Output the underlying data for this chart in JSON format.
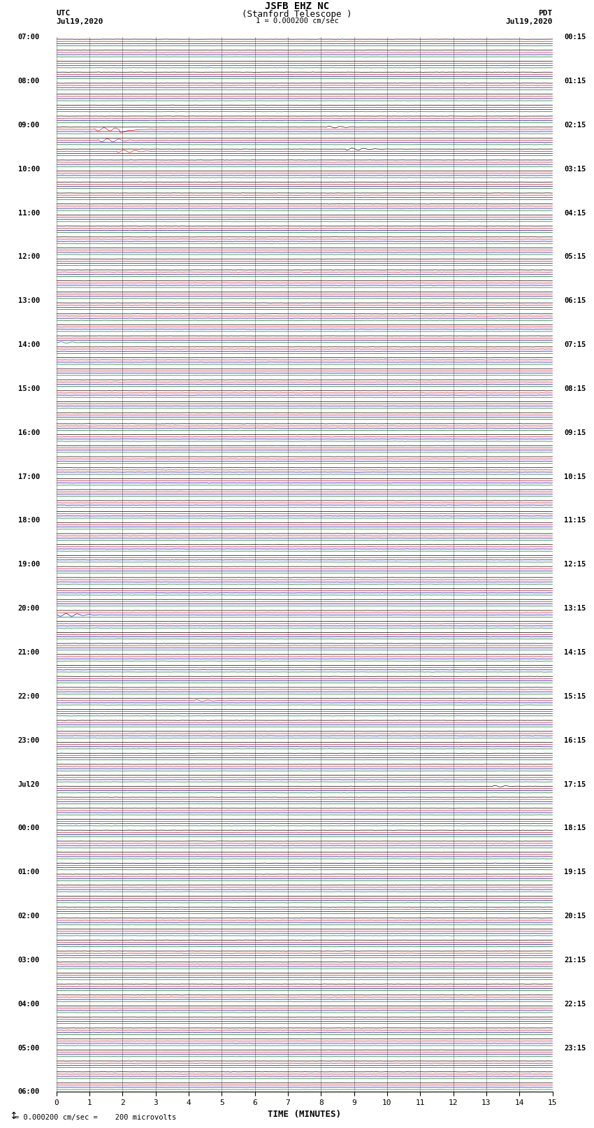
{
  "title_line1": "JSFB EHZ NC",
  "title_line2": "(Stanford Telescope )",
  "scale_text": "1 = 0.000200 cm/sec",
  "left_header": "UTC",
  "left_date": "Jul19,2020",
  "right_header": "PDT",
  "right_date": "Jul19,2020",
  "xlabel": "TIME (MINUTES)",
  "bottom_note": "= 0.000200 cm/sec =    200 microvolts",
  "xlim": [
    0,
    15
  ],
  "xticks": [
    0,
    1,
    2,
    3,
    4,
    5,
    6,
    7,
    8,
    9,
    10,
    11,
    12,
    13,
    14,
    15
  ],
  "bg_color": "#ffffff",
  "grid_color": "#999999",
  "trace_colors": [
    "black",
    "red",
    "blue",
    "green"
  ],
  "num_groups": 96,
  "utc_labels": [
    "07:00",
    "08:00",
    "09:00",
    "10:00",
    "11:00",
    "12:00",
    "13:00",
    "14:00",
    "15:00",
    "16:00",
    "17:00",
    "18:00",
    "19:00",
    "20:00",
    "21:00",
    "22:00",
    "23:00",
    "Jul20",
    "00:00",
    "01:00",
    "02:00",
    "03:00",
    "04:00",
    "05:00",
    "06:00"
  ],
  "pdt_labels": [
    "00:15",
    "01:15",
    "02:15",
    "03:15",
    "04:15",
    "05:15",
    "06:15",
    "07:15",
    "08:15",
    "09:15",
    "10:15",
    "11:15",
    "12:15",
    "13:15",
    "14:15",
    "15:15",
    "16:15",
    "17:15",
    "18:15",
    "19:15",
    "20:15",
    "21:15",
    "22:15",
    "23:15"
  ]
}
